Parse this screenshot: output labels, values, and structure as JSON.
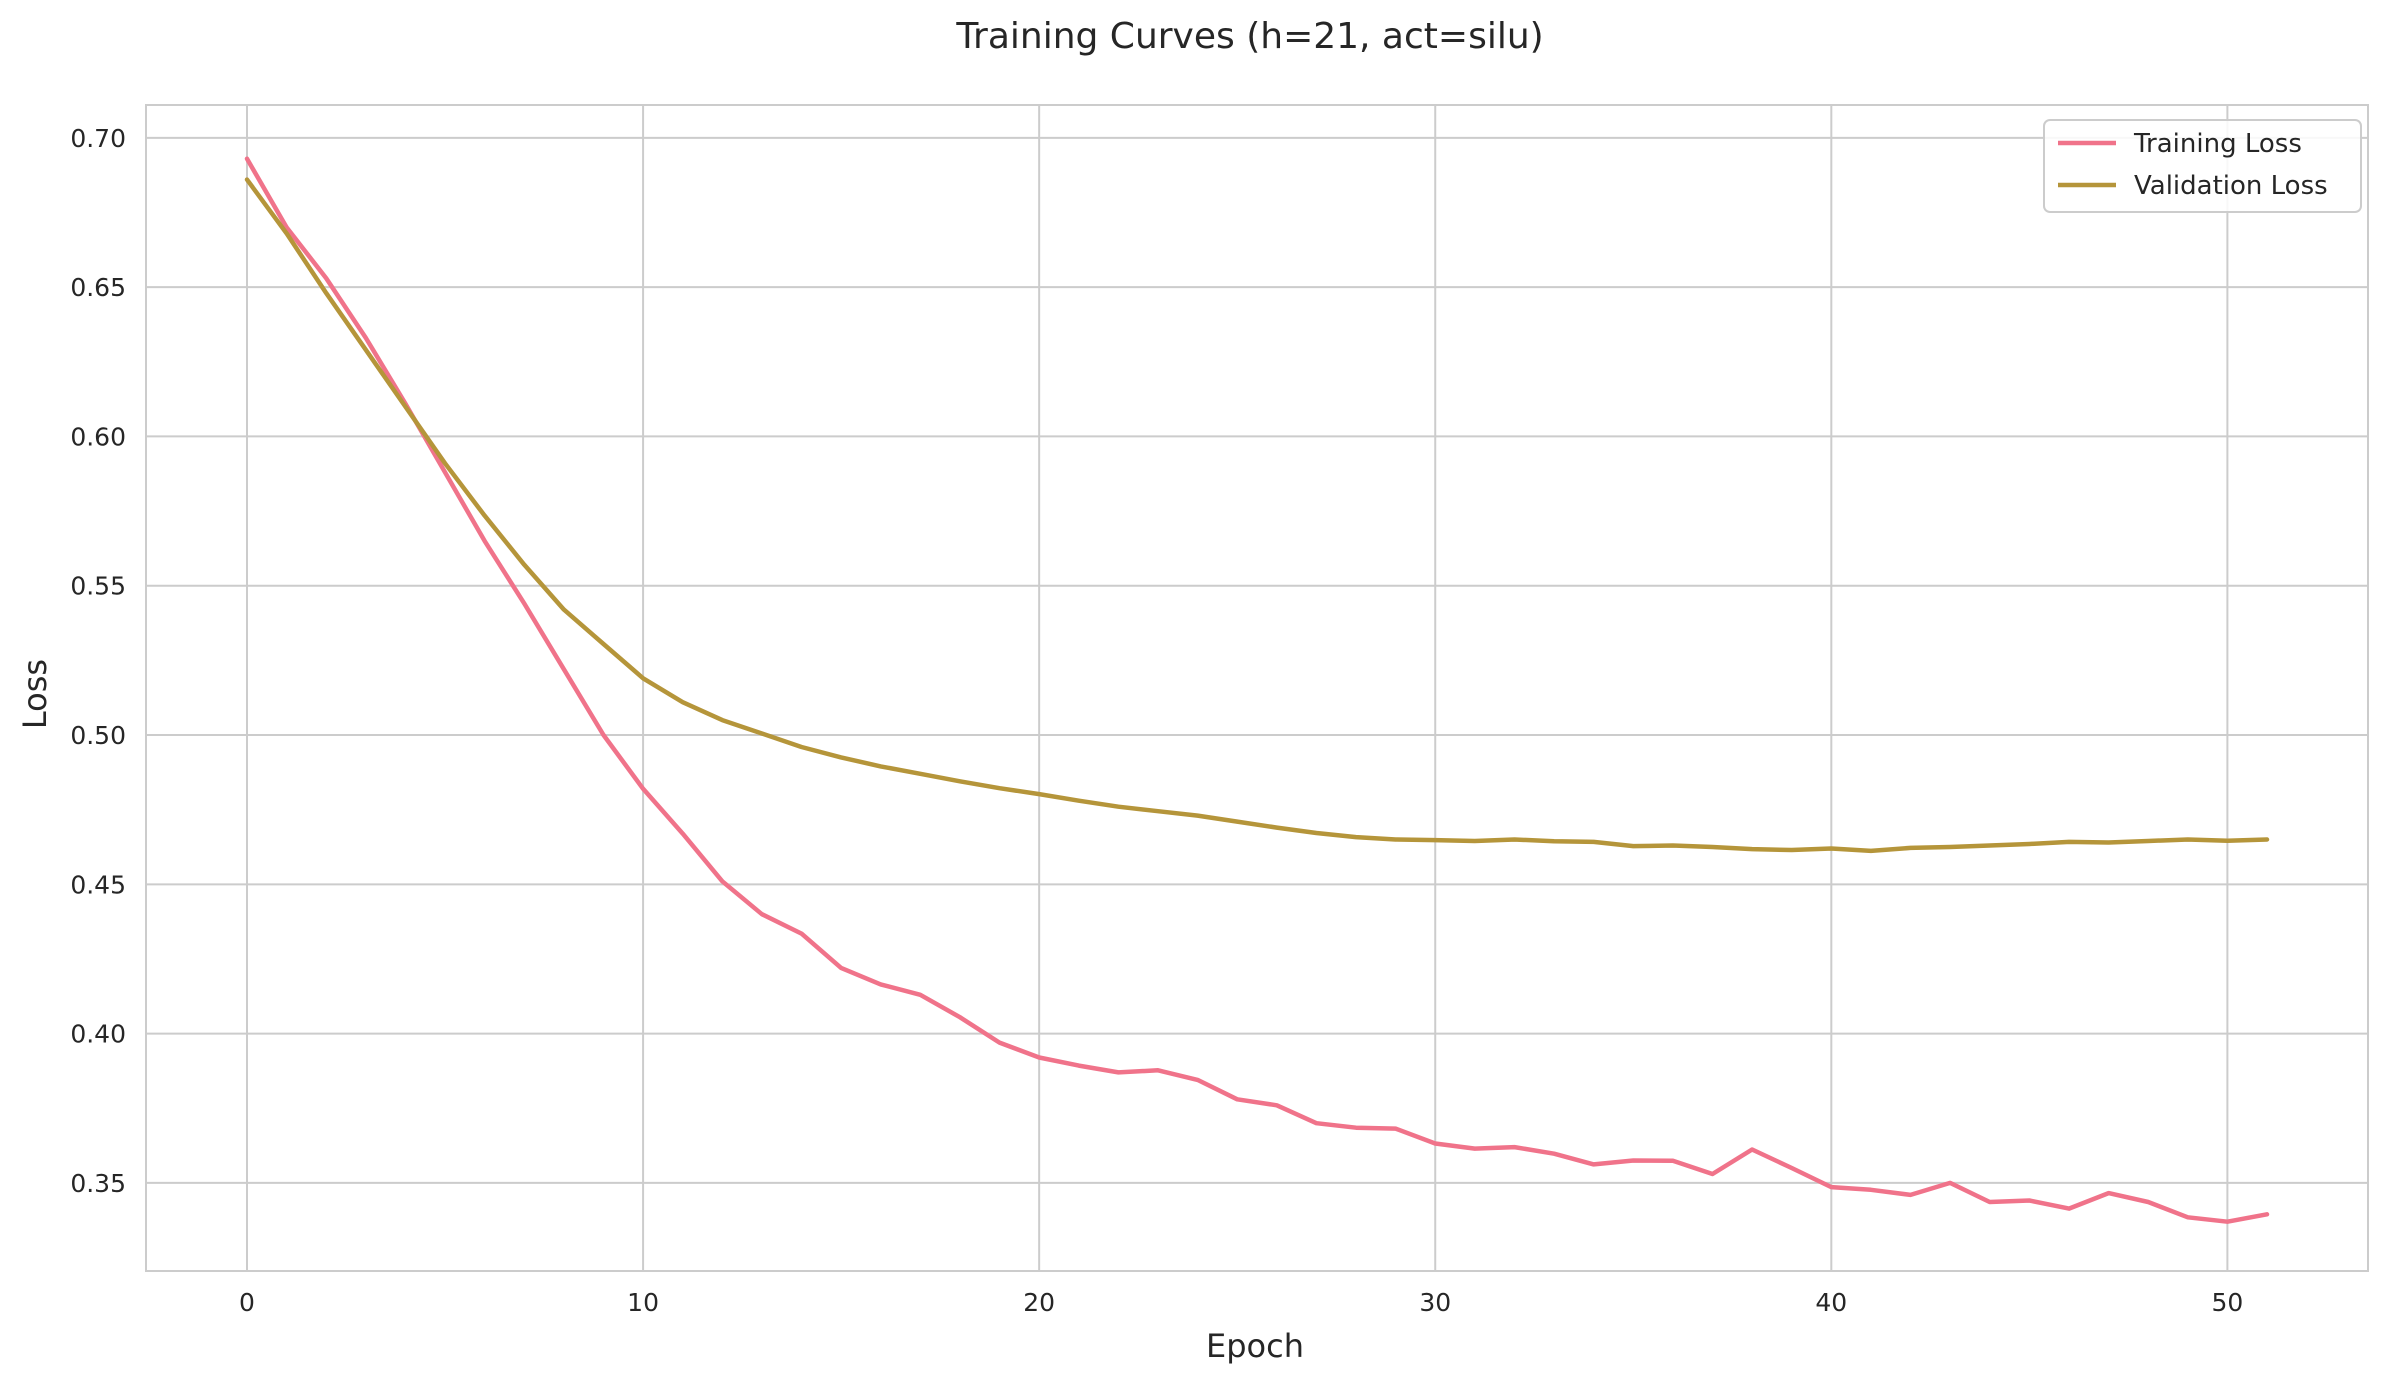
{
  "chart_data": {
    "type": "line",
    "title": "Training Curves (h=21, act=silu)",
    "xlabel": "Epoch",
    "ylabel": "Loss",
    "xlim": [
      -2.55,
      53.55
    ],
    "ylim": [
      0.3205,
      0.711
    ],
    "xticks": [
      0,
      10,
      20,
      30,
      40,
      50
    ],
    "yticks": [
      0.35,
      0.4,
      0.45,
      0.5,
      0.55,
      0.6,
      0.65,
      0.7
    ],
    "xtick_labels": [
      "0",
      "10",
      "20",
      "30",
      "40",
      "50"
    ],
    "ytick_labels": [
      "0.35",
      "0.40",
      "0.45",
      "0.50",
      "0.55",
      "0.60",
      "0.65",
      "0.70"
    ],
    "grid": true,
    "legend_position": "top-right",
    "x": [
      0,
      1,
      2,
      3,
      4,
      5,
      6,
      7,
      8,
      9,
      10,
      11,
      12,
      13,
      14,
      15,
      16,
      17,
      18,
      19,
      20,
      21,
      22,
      23,
      24,
      25,
      26,
      27,
      28,
      29,
      30,
      31,
      32,
      33,
      34,
      35,
      36,
      37,
      38,
      39,
      40,
      41,
      42,
      43,
      44,
      45,
      46,
      47,
      48,
      49,
      50,
      51
    ],
    "series": [
      {
        "name": "Training Loss",
        "color": "#f0738a",
        "values": [
          0.693,
          0.67,
          0.653,
          0.633,
          0.611,
          0.588,
          0.565,
          0.544,
          0.522,
          0.5,
          0.482,
          0.467,
          0.451,
          0.44,
          0.4335,
          0.422,
          0.4165,
          0.413,
          0.4055,
          0.397,
          0.392,
          0.3893,
          0.387,
          0.3877,
          0.3845,
          0.378,
          0.376,
          0.37,
          0.3685,
          0.3682,
          0.3632,
          0.3615,
          0.362,
          0.3598,
          0.3562,
          0.3575,
          0.3574,
          0.353,
          0.3612,
          0.355,
          0.3486,
          0.3477,
          0.346,
          0.35,
          0.3436,
          0.3441,
          0.3414,
          0.3466,
          0.3436,
          0.3385,
          0.337,
          0.3395
        ]
      },
      {
        "name": "Validation Loss",
        "color": "#b5953a",
        "values": [
          0.686,
          0.668,
          0.648,
          0.629,
          0.61,
          0.591,
          0.5735,
          0.557,
          0.542,
          0.5305,
          0.519,
          0.511,
          0.505,
          0.5005,
          0.496,
          0.4925,
          0.4895,
          0.487,
          0.4845,
          0.4822,
          0.4802,
          0.478,
          0.476,
          0.4745,
          0.473,
          0.471,
          0.469,
          0.4672,
          0.4658,
          0.465,
          0.4648,
          0.4645,
          0.465,
          0.4644,
          0.4642,
          0.4628,
          0.463,
          0.4625,
          0.4618,
          0.4615,
          0.462,
          0.4612,
          0.4622,
          0.4625,
          0.463,
          0.4635,
          0.4642,
          0.464,
          0.4645,
          0.465,
          0.4646,
          0.465
        ]
      }
    ]
  },
  "colors": {
    "grid": "#cccccc",
    "spine": "#cccccc",
    "text": "#262626",
    "legend_border": "#cccccc"
  }
}
